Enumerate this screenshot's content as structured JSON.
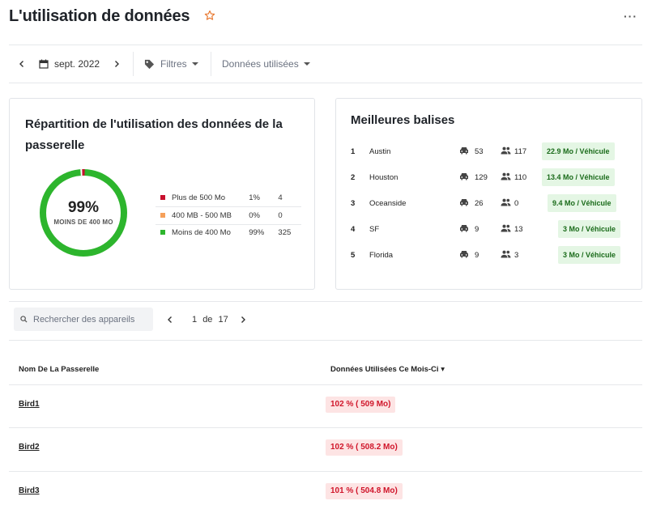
{
  "header": {
    "title": "L'utilisation de données",
    "more_label": "···"
  },
  "toolbar": {
    "period": "sept. 2022",
    "filters_label": "Filtres",
    "data_used_label": "Données utilisées"
  },
  "distribution_card": {
    "title_line1": "Répartition de l'utilisation des données de la",
    "title_line2": "passerelle",
    "donut_percent": "99%",
    "donut_sublabel": "MOINS DE 400 MO",
    "segments_fraction": {
      "over_500": 0.01,
      "mid": 0.0,
      "under_400": 0.99
    },
    "legend": [
      {
        "label": "Plus de 500 Mo",
        "pct": "1%",
        "count": "4",
        "color": "#c8102e"
      },
      {
        "label": "400 MB - 500 MB",
        "pct": "0%",
        "count": "0",
        "color": "#f5a05a"
      },
      {
        "label": "Moins de 400 Mo",
        "pct": "99%",
        "count": "325",
        "color": "#2db52d"
      }
    ]
  },
  "top_tags_card": {
    "title": "Meilleures balises",
    "rows": [
      {
        "rank": "1",
        "name": "Austin",
        "vehicles": "53",
        "people": "117",
        "badge": "22.9 Mo / Véhicule"
      },
      {
        "rank": "2",
        "name": "Houston",
        "vehicles": "129",
        "people": "110",
        "badge": "13.4 Mo / Véhicule"
      },
      {
        "rank": "3",
        "name": "Oceanside",
        "vehicles": "26",
        "people": "0",
        "badge": "9.4 Mo / Véhicule"
      },
      {
        "rank": "4",
        "name": "SF",
        "vehicles": "9",
        "people": "13",
        "badge": "3 Mo / Véhicule"
      },
      {
        "rank": "5",
        "name": "Florida",
        "vehicles": "9",
        "people": "3",
        "badge": "3 Mo / Véhicule"
      }
    ]
  },
  "search": {
    "placeholder": "Rechercher des appareils"
  },
  "pagination": {
    "current": "1",
    "of_label": "de",
    "total": "17"
  },
  "table": {
    "col_gateway": "Nom De La Passerelle",
    "col_data": "Données Utilisées Ce Mois-Ci ▾",
    "rows": [
      {
        "name": "Bird1",
        "usage": "102 % ( 509 Mo)"
      },
      {
        "name": "Bird2",
        "usage": "102 % ( 508.2 Mo)"
      },
      {
        "name": "Bird3",
        "usage": "101 % ( 504.8 Mo)"
      }
    ]
  }
}
